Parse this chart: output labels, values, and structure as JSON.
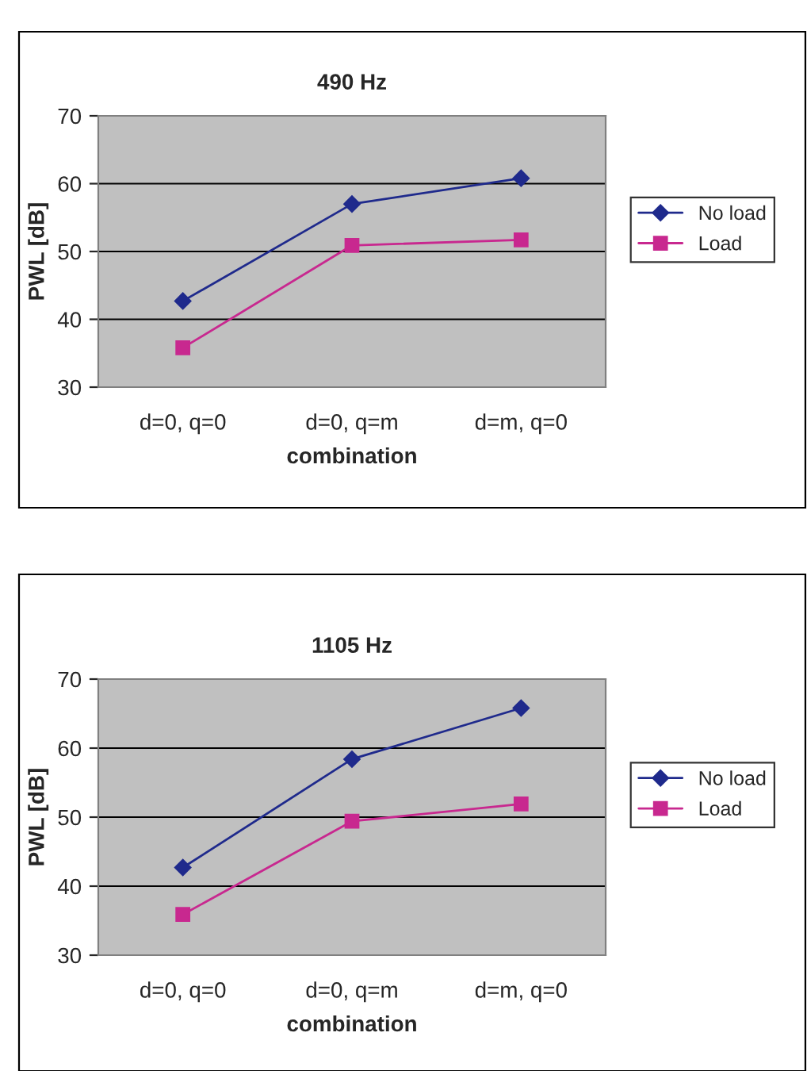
{
  "chart_data": [
    {
      "type": "line",
      "title": "490 Hz",
      "xlabel": "combination",
      "ylabel": "PWL [dB]",
      "categories": [
        "d=0, q=0",
        "d=0, q=m",
        "d=m, q=0"
      ],
      "series": [
        {
          "name": "No load",
          "color": "#1f2a8c",
          "marker": "diamond",
          "values": [
            42.7,
            57.0,
            60.8
          ]
        },
        {
          "name": "Load",
          "color": "#c8288f",
          "marker": "square",
          "values": [
            35.8,
            50.9,
            51.7
          ]
        }
      ],
      "ylim": [
        30,
        70
      ],
      "yticks": [
        30,
        40,
        50,
        60,
        70
      ],
      "grid": "y",
      "legend": "right"
    },
    {
      "type": "line",
      "title": "1105 Hz",
      "xlabel": "combination",
      "ylabel": "PWL [dB]",
      "categories": [
        "d=0, q=0",
        "d=0, q=m",
        "d=m, q=0"
      ],
      "series": [
        {
          "name": "No load",
          "color": "#1f2a8c",
          "marker": "diamond",
          "values": [
            42.7,
            58.4,
            65.8
          ]
        },
        {
          "name": "Load",
          "color": "#c8288f",
          "marker": "square",
          "values": [
            35.9,
            49.4,
            51.9
          ]
        }
      ],
      "ylim": [
        30,
        70
      ],
      "yticks": [
        30,
        40,
        50,
        60,
        70
      ],
      "grid": "y",
      "legend": "right"
    }
  ]
}
